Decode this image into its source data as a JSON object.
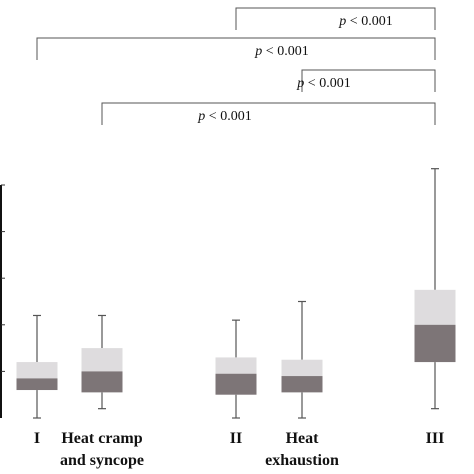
{
  "chart_data": {
    "type": "box",
    "categories": [
      "I",
      "Heat cramp and syncope",
      "II",
      "Heat exhaustion",
      "III"
    ],
    "category_lines": [
      [
        "I"
      ],
      [
        "Heat cramp",
        "and syncope"
      ],
      [
        "II"
      ],
      [
        "Heat",
        "exhaustion"
      ],
      [
        "III"
      ]
    ],
    "ylim": [
      0,
      100
    ],
    "series": [
      {
        "name": "I",
        "min": 0,
        "q1": 12,
        "median": 17,
        "q3": 24,
        "max": 44
      },
      {
        "name": "Heat cramp and syncope",
        "min": 4,
        "q1": 11,
        "median": 20,
        "q3": 30,
        "max": 44
      },
      {
        "name": "II",
        "min": 0,
        "q1": 10,
        "median": 19,
        "q3": 26,
        "max": 42
      },
      {
        "name": "Heat exhaustion",
        "min": 0,
        "q1": 11,
        "median": 18,
        "q3": 25,
        "max": 50
      },
      {
        "name": "III",
        "min": 4,
        "q1": 24,
        "median": 40,
        "q3": 55,
        "max": 107
      }
    ],
    "comparisons": [
      {
        "from": "II",
        "to": "III",
        "label_prefix": "p",
        "label_rest": " < 0.001"
      },
      {
        "from": "I",
        "to": "III",
        "label_prefix": "p",
        "label_rest": " < 0.001"
      },
      {
        "from": "Heat exhaustion",
        "to": "III",
        "label_prefix": "p",
        "label_rest": " < 0.001"
      },
      {
        "from": "Heat cramp and syncope",
        "to": "III",
        "label_prefix": "p",
        "label_rest": " < 0.001"
      }
    ],
    "colors": {
      "upper_box": "#dedcde",
      "lower_box": "#7d7577",
      "whisker": "#555555"
    },
    "grid": false,
    "legend": "none"
  }
}
